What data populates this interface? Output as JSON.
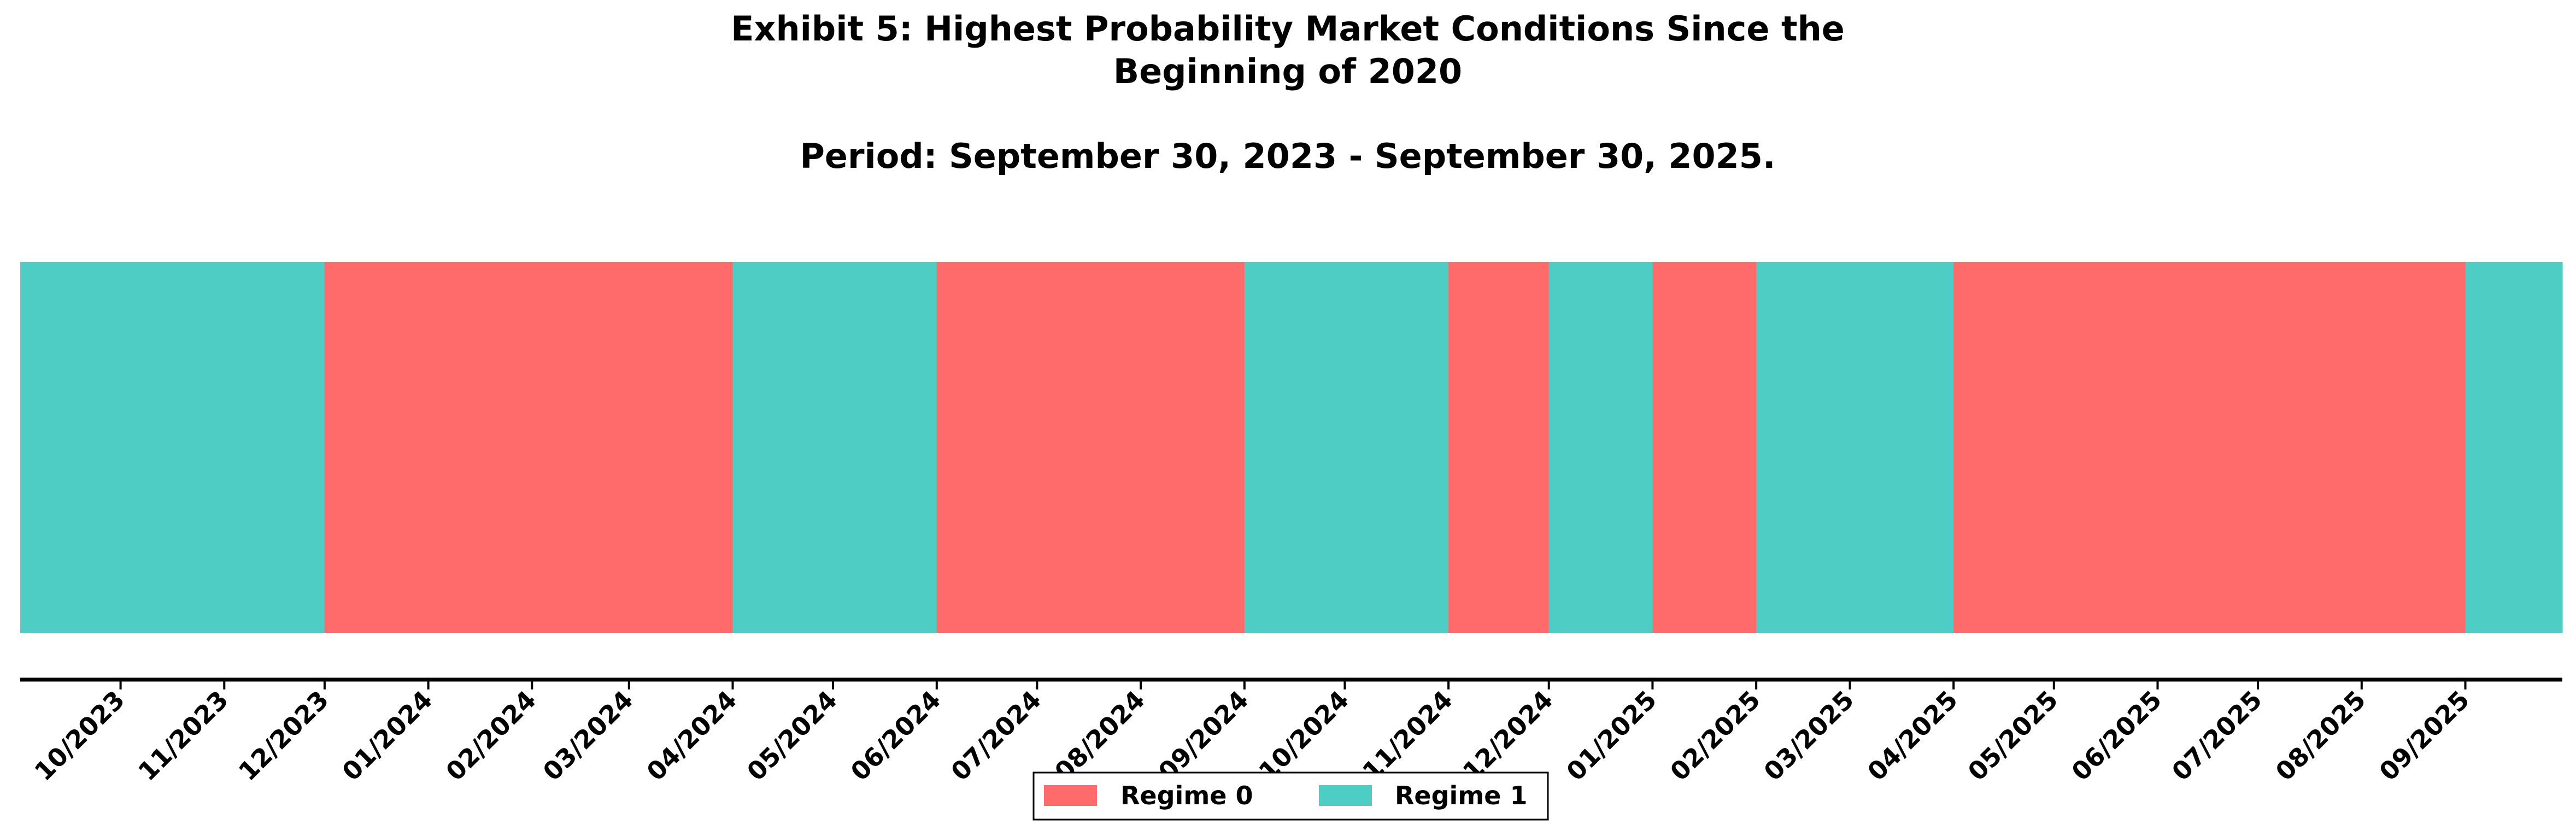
{
  "chart_data": {
    "type": "regime-timeline",
    "title_lines": [
      "Exhibit 5: Highest Probability Market Conditions Since the",
      "Beginning of 2020"
    ],
    "subtitle": "Period: September 30, 2023 - September 30, 2025.",
    "x_start": "2023-09-01",
    "x_end": "2025-09-30",
    "tick_labels": [
      "10/2023",
      "11/2023",
      "12/2023",
      "01/2024",
      "02/2024",
      "03/2024",
      "04/2024",
      "05/2024",
      "06/2024",
      "07/2024",
      "08/2024",
      "09/2024",
      "10/2024",
      "11/2024",
      "12/2024",
      "01/2025",
      "02/2025",
      "03/2025",
      "04/2025",
      "05/2025",
      "06/2025",
      "07/2025",
      "08/2025",
      "09/2025"
    ],
    "tick_dates": [
      "2023-10-01",
      "2023-11-01",
      "2023-12-01",
      "2024-01-01",
      "2024-02-01",
      "2024-03-01",
      "2024-04-01",
      "2024-05-01",
      "2024-06-01",
      "2024-07-01",
      "2024-08-01",
      "2024-09-01",
      "2024-10-01",
      "2024-11-01",
      "2024-12-01",
      "2025-01-01",
      "2025-02-01",
      "2025-03-01",
      "2025-04-01",
      "2025-05-01",
      "2025-06-01",
      "2025-07-01",
      "2025-08-01",
      "2025-09-01"
    ],
    "regimes": [
      {
        "start": "2023-09-01",
        "end": "2023-12-01",
        "regime": 1
      },
      {
        "start": "2023-12-01",
        "end": "2024-04-01",
        "regime": 0
      },
      {
        "start": "2024-04-01",
        "end": "2024-06-01",
        "regime": 1
      },
      {
        "start": "2024-06-01",
        "end": "2024-09-01",
        "regime": 0
      },
      {
        "start": "2024-09-01",
        "end": "2024-11-01",
        "regime": 1
      },
      {
        "start": "2024-11-01",
        "end": "2024-12-01",
        "regime": 0
      },
      {
        "start": "2024-12-01",
        "end": "2025-01-01",
        "regime": 1
      },
      {
        "start": "2025-01-01",
        "end": "2025-02-01",
        "regime": 0
      },
      {
        "start": "2025-02-01",
        "end": "2025-04-01",
        "regime": 1
      },
      {
        "start": "2025-04-01",
        "end": "2025-09-01",
        "regime": 0
      },
      {
        "start": "2025-09-01",
        "end": "2025-09-30",
        "regime": 1
      }
    ],
    "legend": [
      {
        "label": "Regime 0",
        "color": "#ff6b6b"
      },
      {
        "label": "Regime 1",
        "color": "#4ecdc4"
      }
    ],
    "legend_placement": "bottom-center",
    "grid": false
  }
}
